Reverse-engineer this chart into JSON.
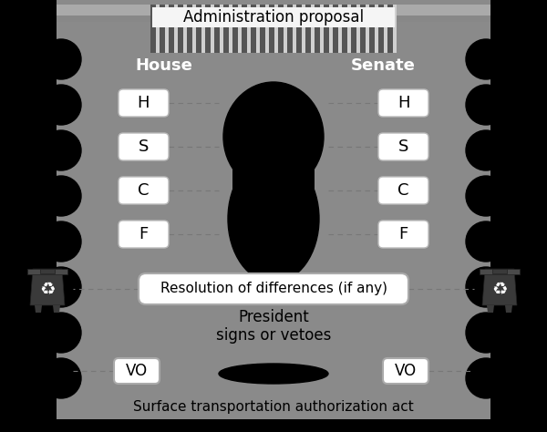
{
  "title": "Administration proposal",
  "house_label": "House",
  "senate_label": "Senate",
  "house_boxes": [
    "H",
    "S",
    "C",
    "F"
  ],
  "senate_boxes": [
    "H",
    "S",
    "C",
    "F"
  ],
  "resolution_box": "Resolution of differences (if any)",
  "president_text": "President\nsigns or vetoes",
  "veto_override_label": "VO",
  "bottom_text": "Surface transportation authorization act",
  "gray_bg": "#8a8a8a",
  "box_fill": "#ffffff",
  "box_edge": "#bbbbbb",
  "stripe_dark": "#555555",
  "stripe_light": "#d0d0d0",
  "dash_color": "#666666",
  "fig_bg": "#000000",
  "admin_text_bg": "#f0f0f0",
  "bin_color": "#404040"
}
